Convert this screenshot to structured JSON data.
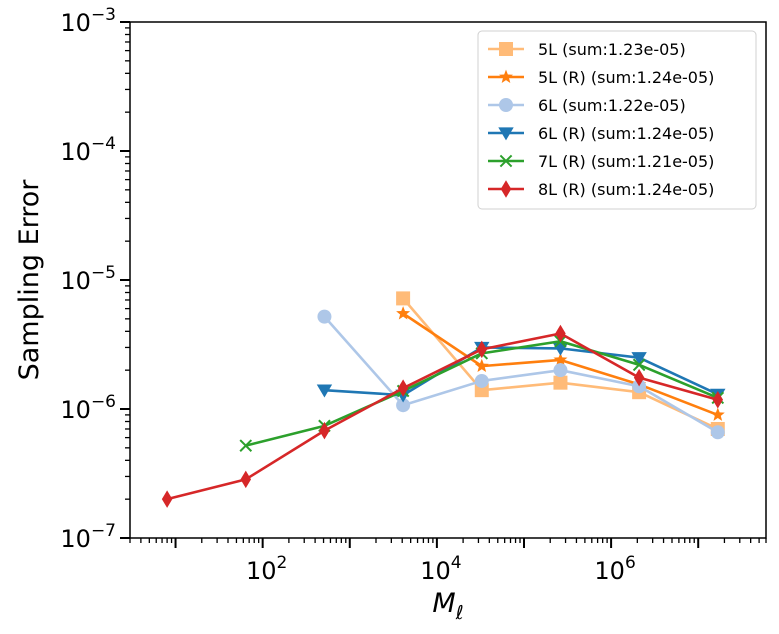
{
  "chart_data": {
    "type": "line",
    "xscale": "log",
    "yscale": "log",
    "xlabel_main": "M",
    "xlabel_sub": "ℓ",
    "ylabel": "Sampling Error",
    "xlim": [
      3,
      60000000
    ],
    "ylim": [
      1e-07,
      0.001
    ],
    "grid": false,
    "legend_position": "top-right",
    "x_ticks": [
      {
        "value": 100,
        "base": "10",
        "exp": "2"
      },
      {
        "value": 10000,
        "base": "10",
        "exp": "4"
      },
      {
        "value": 1000000,
        "base": "10",
        "exp": "6"
      }
    ],
    "y_ticks": [
      {
        "value": 1e-07,
        "base": "10",
        "exp": "−7"
      },
      {
        "value": 1e-06,
        "base": "10",
        "exp": "−6"
      },
      {
        "value": 1e-05,
        "base": "10",
        "exp": "−5"
      },
      {
        "value": 0.0001,
        "base": "10",
        "exp": "−4"
      },
      {
        "value": 0.001,
        "base": "10",
        "exp": "−3"
      }
    ],
    "series": [
      {
        "name": "5L (sum:1.23e-05)",
        "color": "#ffbb78",
        "marker": "square",
        "x": [
          4096,
          32768,
          262144,
          2097152,
          16777216
        ],
        "y": [
          7.2e-06,
          1.4e-06,
          1.6e-06,
          1.35e-06,
          7e-07
        ]
      },
      {
        "name": "5L (R) (sum:1.24e-05)",
        "color": "#ff7f0e",
        "marker": "star",
        "x": [
          4096,
          32768,
          262144,
          2097152,
          16777216
        ],
        "y": [
          5.5e-06,
          2.15e-06,
          2.4e-06,
          1.55e-06,
          9e-07
        ]
      },
      {
        "name": "6L (sum:1.22e-05)",
        "color": "#aec7e8",
        "marker": "circle",
        "x": [
          512,
          4096,
          32768,
          262144,
          2097152,
          16777216
        ],
        "y": [
          5.2e-06,
          1.07e-06,
          1.65e-06,
          2e-06,
          1.5e-06,
          6.6e-07
        ]
      },
      {
        "name": "6L (R) (sum:1.24e-05)",
        "color": "#1f77b4",
        "marker": "triangle-down",
        "x": [
          512,
          4096,
          32768,
          262144,
          2097152,
          16777216
        ],
        "y": [
          1.4e-06,
          1.28e-06,
          3e-06,
          2.95e-06,
          2.5e-06,
          1.3e-06
        ]
      },
      {
        "name": "7L (R) (sum:1.21e-05)",
        "color": "#2ca02c",
        "marker": "x",
        "x": [
          64,
          512,
          4096,
          32768,
          262144,
          2097152,
          16777216
        ],
        "y": [
          5.2e-07,
          7.4e-07,
          1.38e-06,
          2.7e-06,
          3.35e-06,
          2.2e-06,
          1.22e-06
        ]
      },
      {
        "name": "8L (R) (sum:1.24e-05)",
        "color": "#d62728",
        "marker": "diamond",
        "x": [
          8,
          64,
          512,
          4096,
          32768,
          262144,
          2097152,
          16777216
        ],
        "y": [
          2e-07,
          2.85e-07,
          6.8e-07,
          1.45e-06,
          2.9e-06,
          3.85e-06,
          1.75e-06,
          1.18e-06
        ]
      }
    ]
  }
}
